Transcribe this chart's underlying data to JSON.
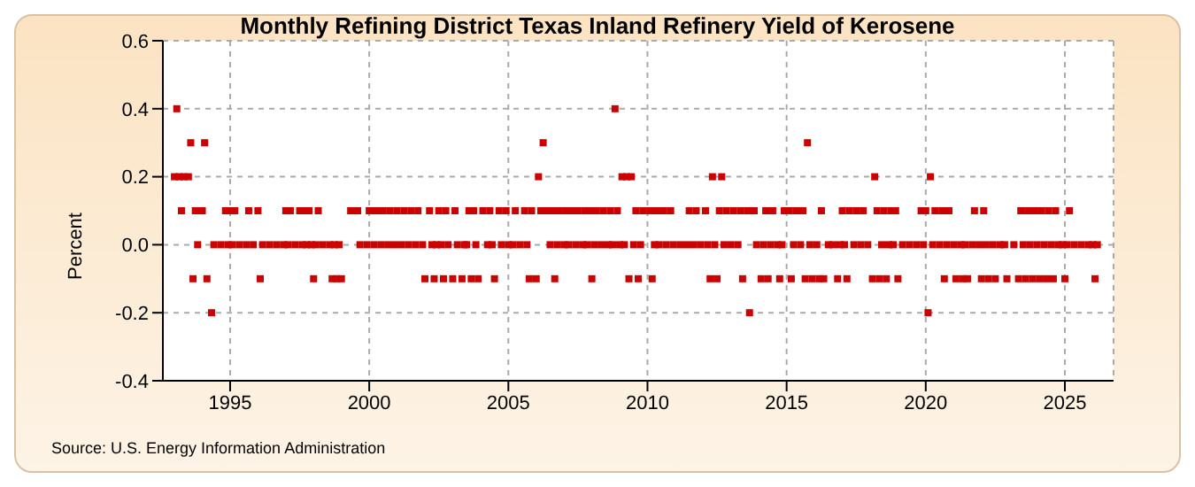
{
  "chart_data": {
    "type": "scatter",
    "title": "Monthly Refining District Texas Inland Refinery Yield of Kerosene",
    "ylabel": "Percent",
    "annotations": [
      "Source: U.S. Energy Information Administration"
    ],
    "xlim": [
      "1992-08",
      "2026-10"
    ],
    "xticks": [
      "1995",
      "2000",
      "2005",
      "2010",
      "2015",
      "2020",
      "2025"
    ],
    "ylim": [
      -0.4,
      0.6
    ],
    "yticks": [
      {
        "value": -0.4,
        "label": "-0.4"
      },
      {
        "value": -0.2,
        "label": "-0.2"
      },
      {
        "value": 0,
        "label": "0.0"
      },
      {
        "value": 0.2,
        "label": "0.2"
      },
      {
        "value": 0.4,
        "label": "0.4"
      },
      {
        "value": 0.6,
        "label": "0.6"
      }
    ],
    "grid": true,
    "legend": false,
    "marker": "square",
    "series": [
      {
        "color": "#cc0000",
        "x": [
          "1993-02",
          "2008-11",
          "1993-08",
          "1994-02",
          "2006-04",
          "2015-10",
          "1993-01",
          "1993-03",
          "1993-05",
          "1993-07",
          "2006-02",
          "2009-02",
          "2009-04",
          "2009-06",
          "2012-05",
          "2012-09",
          "2018-03",
          "2020-03",
          "1994-05",
          "2013-09",
          "2020-02",
          "1993-09",
          "1994-03",
          "1996-02",
          "1998-01",
          "1998-09",
          "1998-11",
          "1999-01",
          "2002-01",
          "2002-05",
          "2002-09",
          "2003-01",
          "2003-05",
          "2003-09",
          "2003-12",
          "2004-07",
          "2005-10",
          "2006-01",
          "2006-09",
          "2008-01",
          "2009-05",
          "2009-09",
          "2010-03",
          "2012-04",
          "2012-07",
          "2013-06",
          "2014-02",
          "2014-05",
          "2014-10",
          "2015-03",
          "2015-09",
          "2015-12",
          "2016-03",
          "2016-05",
          "2016-11",
          "2017-03",
          "2018-02",
          "2018-05",
          "2018-08",
          "2019-01",
          "2020-09",
          "2021-02",
          "2021-05",
          "2021-07",
          "2022-01",
          "2022-04",
          "2022-07",
          "2022-12",
          "2023-05",
          "2023-08",
          "2023-11",
          "2024-02",
          "2024-05",
          "2024-08",
          "2025-01",
          "2026-02",
          "1993-04",
          "1993-10",
          "1993-12",
          "1994-01",
          "1994-11",
          "1995-01",
          "1995-03",
          "1995-09",
          "1996-01",
          "1997-01",
          "1997-03",
          "1997-07",
          "1997-09",
          "1997-11",
          "1998-03",
          "1999-05",
          "1999-08",
          "2000-01",
          "2000-04",
          "2000-07",
          "2000-10",
          "2001-01",
          "2001-04",
          "2001-07",
          "2001-10",
          "2002-03",
          "2002-07",
          "2002-10",
          "2003-02",
          "2003-08",
          "2003-10",
          "2004-02",
          "2004-05",
          "2004-09",
          "2004-12",
          "2005-04",
          "2005-08",
          "2005-11",
          "2006-03",
          "2006-06",
          "2006-08",
          "2006-11",
          "2007-02",
          "2007-04",
          "2007-07",
          "2007-10",
          "2007-12",
          "2008-03",
          "2008-06",
          "2008-09",
          "2008-12",
          "2009-08",
          "2009-11",
          "2010-02",
          "2010-05",
          "2010-08",
          "2010-11",
          "2011-07",
          "2011-10",
          "2012-02",
          "2012-08",
          "2012-11",
          "2013-02",
          "2013-05",
          "2013-08",
          "2013-11",
          "2014-04",
          "2014-07",
          "2014-12",
          "2015-02",
          "2015-05",
          "2015-08",
          "2016-04",
          "2017-01",
          "2017-04",
          "2017-07",
          "2017-10",
          "2018-04",
          "2018-07",
          "2018-10",
          "2018-12",
          "2019-11",
          "2020-01",
          "2020-05",
          "2020-08",
          "2020-11",
          "2021-10",
          "2022-02",
          "2023-06",
          "2023-09",
          "2023-12",
          "2024-03",
          "2024-06",
          "2024-09",
          "2025-03",
          "1993-11",
          "1994-06",
          "1994-09",
          "1994-12",
          "1995-02",
          "1995-05",
          "1995-08",
          "1995-11",
          "1996-03",
          "1996-06",
          "1996-09",
          "1996-12",
          "1997-02",
          "1997-05",
          "1997-08",
          "1997-10",
          "1997-12",
          "1998-02",
          "1998-05",
          "1998-08",
          "1998-10",
          "1998-12",
          "1999-09",
          "1999-12",
          "2000-03",
          "2000-06",
          "2000-09",
          "2000-12",
          "2001-03",
          "2001-06",
          "2001-09",
          "2001-12",
          "2002-04",
          "2002-06",
          "2002-08",
          "2002-11",
          "2003-03",
          "2003-06",
          "2003-07",
          "2003-11",
          "2004-04",
          "2004-06",
          "2004-10",
          "2005-01",
          "2005-03",
          "2005-06",
          "2005-09",
          "2006-07",
          "2006-10",
          "2007-01",
          "2007-03",
          "2007-06",
          "2007-09",
          "2007-11",
          "2008-02",
          "2008-05",
          "2008-08",
          "2008-10",
          "2009-01",
          "2009-03",
          "2009-07",
          "2009-10",
          "2010-04",
          "2010-06",
          "2010-09",
          "2010-12",
          "2011-03",
          "2011-06",
          "2011-09",
          "2011-12",
          "2012-03",
          "2012-06",
          "2012-10",
          "2013-01",
          "2013-04",
          "2013-12",
          "2014-03",
          "2014-06",
          "2014-09",
          "2014-11",
          "2015-04",
          "2015-07",
          "2015-11",
          "2016-02",
          "2016-07",
          "2016-09",
          "2016-12",
          "2017-02",
          "2017-06",
          "2017-09",
          "2017-12",
          "2018-06",
          "2018-09",
          "2018-11",
          "2019-03",
          "2019-06",
          "2019-09",
          "2019-12",
          "2020-04",
          "2020-07",
          "2020-10",
          "2021-01",
          "2021-04",
          "2021-06",
          "2021-09",
          "2021-12",
          "2022-03",
          "2022-06",
          "2022-09",
          "2022-11",
          "2023-03",
          "2023-07",
          "2023-10",
          "2024-01",
          "2024-04",
          "2024-07",
          "2024-10",
          "2024-12",
          "2025-02",
          "2025-05",
          "2025-08",
          "2025-11",
          "2026-01",
          "2026-03"
        ],
        "values": [
          0.4,
          0.4,
          0.3,
          0.3,
          0.3,
          0.3,
          0.2,
          0.2,
          0.2,
          0.2,
          0.2,
          0.2,
          0.2,
          0.2,
          0.2,
          0.2,
          0.2,
          0.2,
          -0.2,
          -0.2,
          -0.2,
          -0.1,
          -0.1,
          -0.1,
          -0.1,
          -0.1,
          -0.1,
          -0.1,
          -0.1,
          -0.1,
          -0.1,
          -0.1,
          -0.1,
          -0.1,
          -0.1,
          -0.1,
          -0.1,
          -0.1,
          -0.1,
          -0.1,
          -0.1,
          -0.1,
          -0.1,
          -0.1,
          -0.1,
          -0.1,
          -0.1,
          -0.1,
          -0.1,
          -0.1,
          -0.1,
          -0.1,
          -0.1,
          -0.1,
          -0.1,
          -0.1,
          -0.1,
          -0.1,
          -0.1,
          -0.1,
          -0.1,
          -0.1,
          -0.1,
          -0.1,
          -0.1,
          -0.1,
          -0.1,
          -0.1,
          -0.1,
          -0.1,
          -0.1,
          -0.1,
          -0.1,
          -0.1,
          -0.1,
          -0.1,
          0.1,
          0.1,
          0.1,
          0.1,
          0.1,
          0.1,
          0.1,
          0.1,
          0.1,
          0.1,
          0.1,
          0.1,
          0.1,
          0.1,
          0.1,
          0.1,
          0.1,
          0.1,
          0.1,
          0.1,
          0.1,
          0.1,
          0.1,
          0.1,
          0.1,
          0.1,
          0.1,
          0.1,
          0.1,
          0.1,
          0.1,
          0.1,
          0.1,
          0.1,
          0.1,
          0.1,
          0.1,
          0.1,
          0.1,
          0.1,
          0.1,
          0.1,
          0.1,
          0.1,
          0.1,
          0.1,
          0.1,
          0.1,
          0.1,
          0.1,
          0.1,
          0.1,
          0.1,
          0.1,
          0.1,
          0.1,
          0.1,
          0.1,
          0.1,
          0.1,
          0.1,
          0.1,
          0.1,
          0.1,
          0.1,
          0.1,
          0.1,
          0.1,
          0.1,
          0.1,
          0.1,
          0.1,
          0.1,
          0.1,
          0.1,
          0.1,
          0.1,
          0.1,
          0.1,
          0.1,
          0.1,
          0.1,
          0.1,
          0.1,
          0.1,
          0.1,
          0.1,
          0.1,
          0.1,
          0.1,
          0.1,
          0.1,
          0.1,
          0.1,
          0.1,
          0,
          0,
          0,
          0,
          0,
          0,
          0,
          0,
          0,
          0,
          0,
          0,
          0,
          0,
          0,
          0,
          0,
          0,
          0,
          0,
          0,
          0,
          0,
          0,
          0,
          0,
          0,
          0,
          0,
          0,
          0,
          0,
          0,
          0,
          0,
          0,
          0,
          0,
          0,
          0,
          0,
          0,
          0,
          0,
          0,
          0,
          0,
          0,
          0,
          0,
          0,
          0,
          0,
          0,
          0,
          0,
          0,
          0,
          0,
          0,
          0,
          0,
          0,
          0,
          0,
          0,
          0,
          0,
          0,
          0,
          0,
          0,
          0,
          0,
          0,
          0,
          0,
          0,
          0,
          0,
          0,
          0,
          0,
          0,
          0,
          0,
          0,
          0,
          0,
          0,
          0,
          0,
          0,
          0,
          0,
          0,
          0,
          0,
          0,
          0,
          0,
          0,
          0,
          0,
          0,
          0,
          0,
          0,
          0,
          0,
          0,
          0,
          0,
          0,
          0,
          0,
          0,
          0,
          0,
          0,
          0,
          0,
          0,
          0
        ]
      }
    ]
  }
}
